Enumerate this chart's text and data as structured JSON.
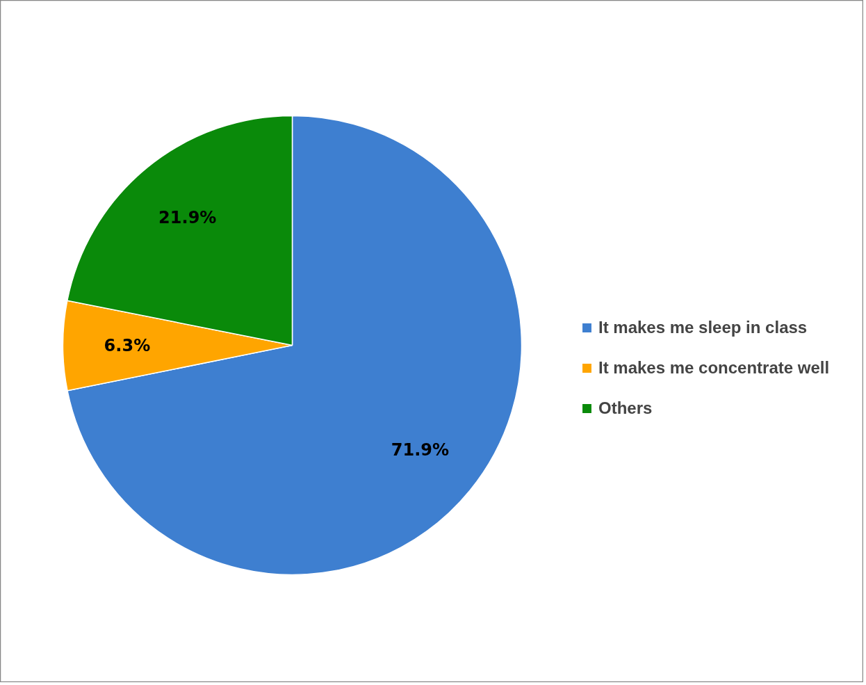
{
  "chart_data": {
    "type": "pie",
    "categories": [
      "It makes me sleep in class",
      "It makes me concentrate well",
      "Others"
    ],
    "values": [
      71.9,
      6.3,
      21.9
    ],
    "colors": [
      "#3e7fd0",
      "#ffa500",
      "#0a8a0a"
    ],
    "value_labels": [
      "71.9%",
      "6.3%",
      "21.9%"
    ],
    "legend": "right"
  }
}
